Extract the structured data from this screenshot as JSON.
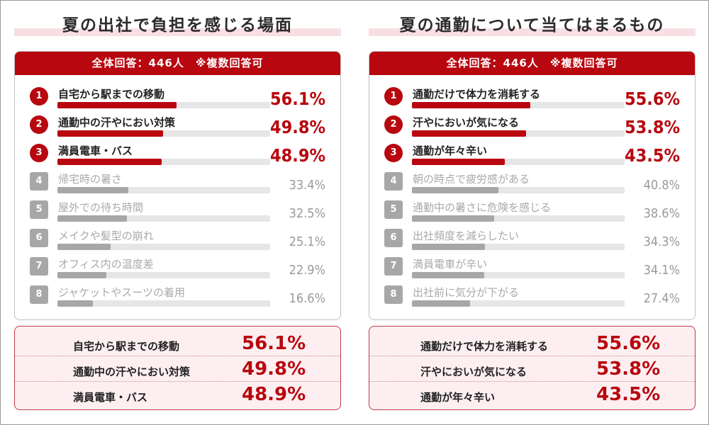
{
  "chart_data": [
    {
      "type": "bar",
      "title": "夏の出社で負担を感じる場面",
      "subtitle": "全体回答：446人　※複数回答可",
      "categories": [
        "自宅から駅までの移動",
        "通勤中の汗やにおい対策",
        "満員電車・バス",
        "帰宅時の暑さ",
        "屋外での待ち時間",
        "メイクや髪型の崩れ",
        "オフィス内の温度差",
        "ジャケットやスーツの着用"
      ],
      "values": [
        56.1,
        49.8,
        48.9,
        33.4,
        32.5,
        25.1,
        22.9,
        16.6
      ],
      "value_labels": [
        "56.1%",
        "49.8%",
        "48.9%",
        "33.4%",
        "32.5%",
        "25.1%",
        "22.9%",
        "16.6%"
      ],
      "ranks": [
        "1",
        "2",
        "3",
        "4",
        "5",
        "6",
        "7",
        "8"
      ],
      "highlight_top": 3,
      "summary": [
        {
          "label": "自宅から駅までの移動",
          "value": "56.1%"
        },
        {
          "label": "通勤中の汗やにおい対策",
          "value": "49.8%"
        },
        {
          "label": "満員電車・バス",
          "value": "48.9%"
        }
      ],
      "unit": "%",
      "ylim": [
        0,
        100
      ]
    },
    {
      "type": "bar",
      "title": "夏の通勤について当てはまるもの",
      "subtitle": "全体回答：446人　※複数回答可",
      "categories": [
        "通勤だけで体力を消耗する",
        "汗やにおいが気になる",
        "通勤が年々辛い",
        "朝の時点で疲労感がある",
        "通勤中の暑さに危険を感じる",
        "出社頻度を減らしたい",
        "満員電車が辛い",
        "出社前に気分が下がる"
      ],
      "values": [
        55.6,
        53.8,
        43.5,
        40.8,
        38.6,
        34.3,
        34.1,
        27.4
      ],
      "value_labels": [
        "55.6%",
        "53.8%",
        "43.5%",
        "40.8%",
        "38.6%",
        "34.3%",
        "34.1%",
        "27.4%"
      ],
      "ranks": [
        "1",
        "2",
        "3",
        "4",
        "5",
        "6",
        "7",
        "8"
      ],
      "highlight_top": 3,
      "summary": [
        {
          "label": "通勤だけで体力を消耗する",
          "value": "55.6%"
        },
        {
          "label": "汗やにおいが気になる",
          "value": "53.8%"
        },
        {
          "label": "通勤が年々辛い",
          "value": "43.5%"
        }
      ],
      "unit": "%",
      "ylim": [
        0,
        100
      ]
    }
  ],
  "colors": {
    "accent": "#b8070f",
    "muted_bar": "#a7a7a7",
    "track": "#e6e6e6",
    "summary_bg": "#fdeff1"
  }
}
